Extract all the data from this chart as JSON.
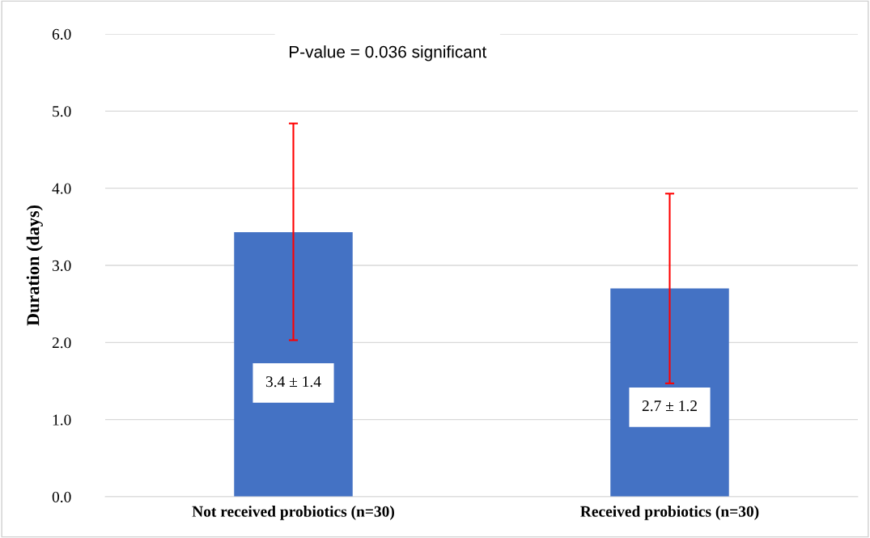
{
  "chart_data": {
    "type": "bar",
    "ylabel": "Duration (days)",
    "categories": [
      "Not received probiotics (n=30)",
      "Received probiotics (n=30)"
    ],
    "values": [
      3.43,
      2.7
    ],
    "color": "#4472c4",
    "errors": [
      [
        2.03,
        4.84
      ],
      [
        1.47,
        3.93
      ]
    ],
    "value_labels": [
      "3.4 ± 1.4",
      "2.7 ± 1.2"
    ],
    "ylim": [
      0,
      6
    ],
    "yticks": [
      {
        "value": 0,
        "label": "0.0"
      },
      {
        "value": 1,
        "label": "1.0"
      },
      {
        "value": 2,
        "label": "2.0"
      },
      {
        "value": 3,
        "label": "3.0"
      },
      {
        "value": 4,
        "label": "4.0"
      },
      {
        "value": 5,
        "label": "5.0"
      },
      {
        "value": 6,
        "label": "6.0"
      }
    ],
    "grid": "y",
    "annotations": [
      "P-value = 0.036 significant"
    ]
  }
}
